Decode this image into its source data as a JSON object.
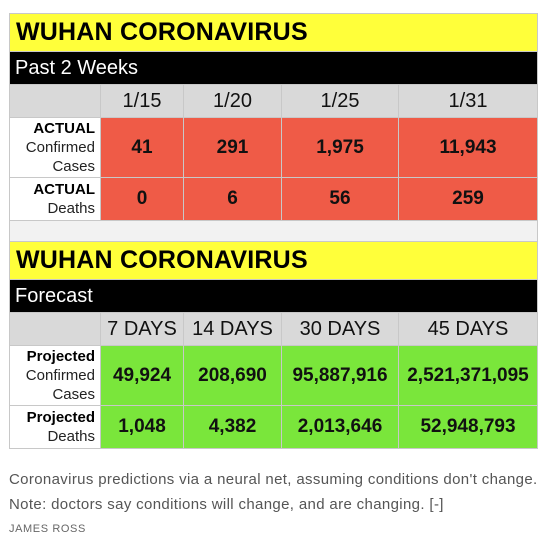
{
  "table1": {
    "title": "WUHAN CORONAVIRUS",
    "subtitle": "Past 2 Weeks",
    "dates": [
      "1/15",
      "1/20",
      "1/25",
      "1/31"
    ],
    "row_cases": {
      "label_bold": "ACTUAL",
      "label_line2": "Confirmed",
      "label_line3": "Cases",
      "values": [
        "41",
        "291",
        "1,975",
        "11,943"
      ]
    },
    "row_deaths": {
      "label_bold": "ACTUAL",
      "label_line2": "Deaths",
      "values": [
        "0",
        "6",
        "56",
        "259"
      ]
    }
  },
  "table2": {
    "title": "WUHAN CORONAVIRUS",
    "subtitle": "Forecast",
    "periods": [
      "7 DAYS",
      "14 DAYS",
      "30 DAYS",
      "45 DAYS"
    ],
    "row_cases": {
      "label_bold": "Projected",
      "label_line2": "Confirmed",
      "label_line3": "Cases",
      "values": [
        "49,924",
        "208,690",
        "95,887,916",
        "2,521,371,095"
      ]
    },
    "row_deaths": {
      "label_bold": "Projected",
      "label_line2": "Deaths",
      "values": [
        "1,048",
        "4,382",
        "2,013,646",
        "52,948,793"
      ]
    }
  },
  "caption": {
    "text": "Coronavirus predictions via a neural net, assuming conditions don't change. Note: doctors say conditions will change, and are changing.",
    "more_link": "[-]",
    "credit": "JAMES ROSS"
  },
  "colors": {
    "title_bg": "#ffff3a",
    "actual_bg": "#ef5b47",
    "forecast_bg": "#7ae63b",
    "header_bg": "#d9d9d9"
  }
}
